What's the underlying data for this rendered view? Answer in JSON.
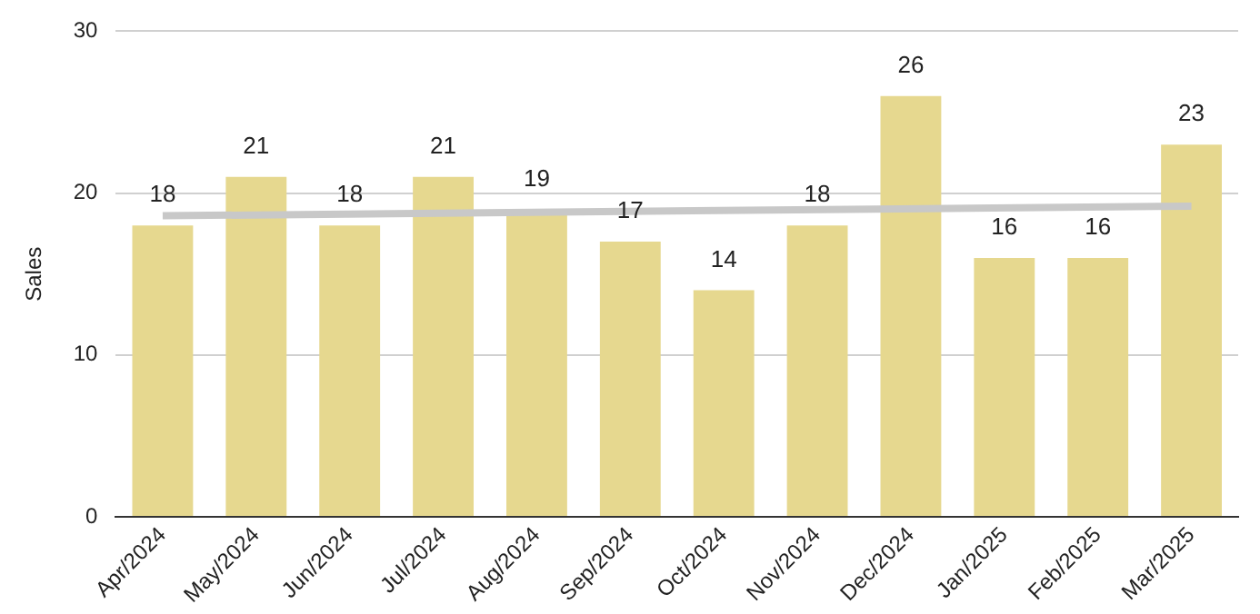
{
  "chart_data": {
    "type": "bar",
    "ylabel": "Sales",
    "categories": [
      "Apr/2024",
      "May/2024",
      "Jun/2024",
      "Jul/2024",
      "Aug/2024",
      "Sep/2024",
      "Oct/2024",
      "Nov/2024",
      "Dec/2024",
      "Jan/2025",
      "Feb/2025",
      "Mar/2025"
    ],
    "series": [
      {
        "color": "#e6d88f",
        "values": [
          18,
          21,
          18,
          21,
          19,
          17,
          14,
          18,
          26,
          16,
          16,
          23
        ],
        "value_labels": [
          "18",
          "21",
          "18",
          "21",
          "19",
          "17",
          "14",
          "18",
          "26",
          "16",
          "16",
          "23"
        ]
      },
      {
        "type": "line",
        "color": "#c8c8c8",
        "values": [
          18.6,
          null,
          null,
          null,
          null,
          null,
          null,
          null,
          null,
          null,
          null,
          19.2
        ]
      }
    ],
    "ylim": [
      0,
      30
    ],
    "yticks": [
      0,
      10,
      20,
      30
    ],
    "grid": "y",
    "legend": false
  }
}
